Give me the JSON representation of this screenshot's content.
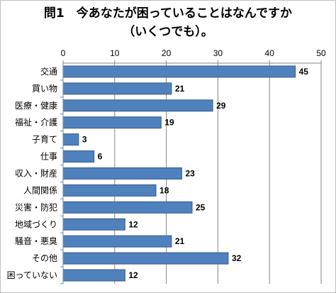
{
  "chart_data": {
    "type": "bar",
    "orientation": "horizontal",
    "title_line1": "問1　今あなたが困っていることはなんですか",
    "title_line2": "（いくつでも）。",
    "categories": [
      "交通",
      "買い物",
      "医療・健康",
      "福祉・介護",
      "子育て",
      "仕事",
      "収入・財産",
      "人間関係",
      "災害・防犯",
      "地域づくり",
      "騒音・悪臭",
      "その他",
      "困っていない"
    ],
    "values": [
      45,
      21,
      29,
      19,
      3,
      6,
      23,
      18,
      25,
      12,
      21,
      32,
      12
    ],
    "data_labels": [
      "45",
      "21",
      "29",
      "19",
      "3",
      "6",
      "23",
      "18",
      "25",
      "12",
      "21",
      "32",
      "12"
    ],
    "xlim": [
      0,
      50
    ],
    "ticks": [
      "0",
      "10",
      "20",
      "30",
      "40",
      "50"
    ],
    "tick_values": [
      0,
      10,
      20,
      30,
      40,
      50
    ],
    "x_axis_position": "top",
    "grid": true,
    "bar_color": "#4f81bd",
    "bar_edge_color": "#385d8a",
    "grid_color": "#868686"
  }
}
